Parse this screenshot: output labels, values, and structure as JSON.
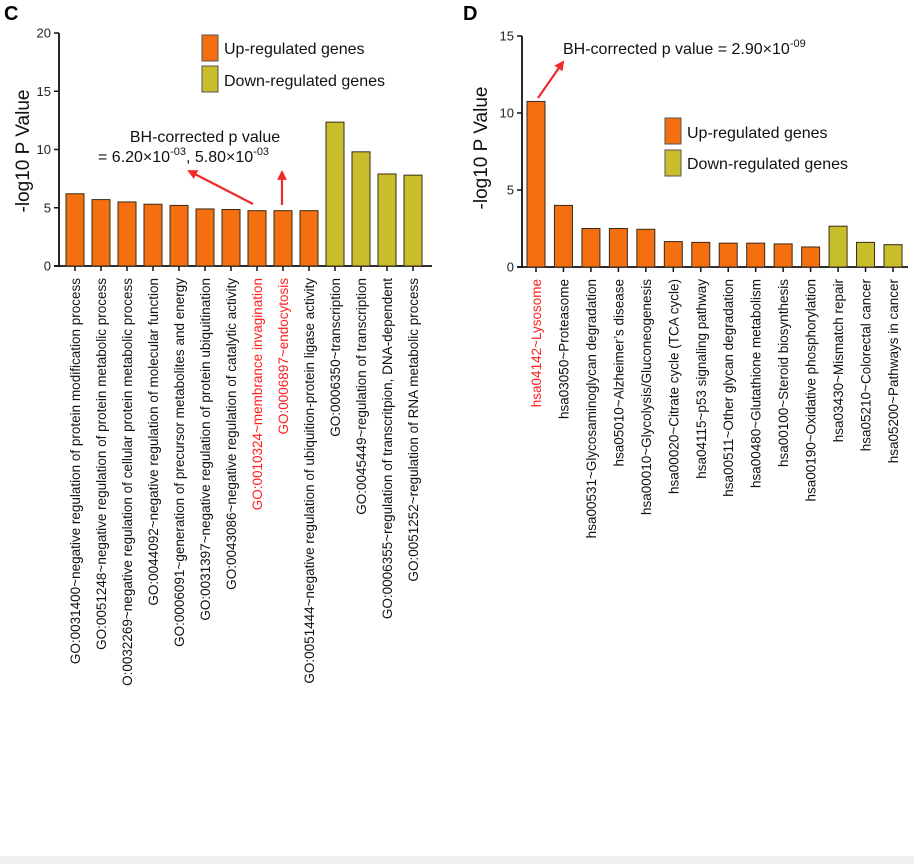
{
  "colors": {
    "up": "#f36f10",
    "down": "#c8be2c",
    "highlight_label": "#ff2020",
    "arrow": "#f02a2a",
    "bar_stroke": "#3a2a1a"
  },
  "chart_data": [
    {
      "panel": "C",
      "type": "bar",
      "title": "",
      "xlabel": "",
      "ylabel": "-log10 P Value",
      "ylim": [
        0,
        20
      ],
      "yticks": [
        0,
        5,
        10,
        15,
        20
      ],
      "grid": false,
      "legend": {
        "placement": "top-right",
        "entries": [
          {
            "label": "Up-regulated genes",
            "group": "up"
          },
          {
            "label": "Down-regulated genes",
            "group": "down"
          }
        ]
      },
      "categories": [
        "GO:0031400~negative regulation of protein modification process",
        "GO:0051248~negative regulation of protein metabolic process",
        "GO:0032269~negative regulation of cellular protein metabolic process",
        "GO:0044092~negative regulation of molecular function",
        "GO:0006091~generation of precursor metabolites and energy",
        "GO:0031397~negative regulation of protein ubiquitination",
        "GO:0043086~negative regulation of catalytic activity",
        "GO:0010324~membrance invagination",
        "GO:0006897~endocytosis",
        "GO:0051444~negative regulation of ubiquition-protein ligase activity",
        "GO:0006350~transcription",
        "GO:0045449~regulation of transcription",
        "GO:0006355~regulation of transcritpion, DNA-dependent",
        "GO:0051252~regulation of RNA metabolic process"
      ],
      "display_labels": [
        "GO:0031400~negative regulation of protein modification process",
        "GO:0051248~negative regulation of protein metabolic process",
        "O:0032269~negative regulation of cellular protein metabolic process",
        "GO:0044092~negative regulation of molecular function",
        "GO:0006091~generation of precursor metabolites and energy",
        "GO:0031397~negative regulation of protein ubiquitination",
        "GO:0043086~negative regulation of catalytic activity",
        "GO:0010324~membrance invagination",
        "GO:0006897~endocytosis",
        "GO:0051444~negative regulation of ubiquition-protein ligase activity",
        "GO:0006350~transcription",
        "GO:0045449~regulation of transcription",
        "GO:0006355~regulation of transcritpion, DNA-dependent",
        "GO:0051252~regulation of RNA metabolic process"
      ],
      "values": [
        6.2,
        5.7,
        5.5,
        5.3,
        5.2,
        4.9,
        4.85,
        4.75,
        4.75,
        4.75,
        12.35,
        9.8,
        7.9,
        7.8
      ],
      "groups": [
        "up",
        "up",
        "up",
        "up",
        "up",
        "up",
        "up",
        "up",
        "up",
        "up",
        "down",
        "down",
        "down",
        "down"
      ],
      "highlighted": [
        7,
        8
      ],
      "annotation": {
        "line1": "BH-corrected p value",
        "line2_prefix": "= 6.20×10",
        "exp1": "-03",
        "mid": ", 5.80×10",
        "exp2": "-03"
      }
    },
    {
      "panel": "D",
      "type": "bar",
      "title": "",
      "xlabel": "",
      "ylabel": "-log10 P Value",
      "ylim": [
        0,
        15
      ],
      "yticks": [
        0,
        5,
        10,
        15
      ],
      "grid": false,
      "legend": {
        "placement": "center-right",
        "entries": [
          {
            "label": "Up-regulated genes",
            "group": "up"
          },
          {
            "label": "Down-regulated genes",
            "group": "down"
          }
        ]
      },
      "categories": [
        "hsa04142~Lysosome",
        "hsa03050~Proteasome",
        "hsa00531~Glycosaminoglycan degradation",
        "hsa05010~Alzheimer's disease",
        "hsa00010~Glycolysis/Gluconeogenesis",
        "hsa00020~Citrate cycle (TCA cycle)",
        "hsa04115~p53 signaling pathway",
        "hsa00511~Other glycan degradation",
        "hsa00480~Glutathione metabolism",
        "hsa00100~Steroid biosynthesis",
        "hsa00190~Oxidative phosphorylation",
        "hsa03430~Mismatch repair",
        "hsa05210~Colorectal cancer",
        "hsa05200~Pathways in cancer"
      ],
      "display_labels": [
        "hsa04142~Lysosome",
        "hsa03050~Proteasome",
        "hsa00531~Glycosaminoglycan degradation",
        "hsa05010~Alzheimer’s disease",
        "hsa00010~Glycolysis/Gluconeogenesis",
        "hsa00020~Citrate cycle (TCA cycle)",
        "hsa04115~p53 signaling pathway",
        "hsa00511~Other glycan degradation",
        "hsa00480~Glutathione metabolism",
        "hsa00100~Steroid biosynthesis",
        "hsa00190~Oxidative phosphorylation",
        "hsa03430~Mismatch repair",
        "hsa05210~Colorectal cancer",
        "hsa05200~Pathways in cancer"
      ],
      "values": [
        10.75,
        4.0,
        2.5,
        2.5,
        2.45,
        1.65,
        1.6,
        1.55,
        1.55,
        1.5,
        1.3,
        2.65,
        1.6,
        1.45
      ],
      "groups": [
        "up",
        "up",
        "up",
        "up",
        "up",
        "up",
        "up",
        "up",
        "up",
        "up",
        "up",
        "down",
        "down",
        "down"
      ],
      "highlighted": [
        0
      ],
      "annotation": {
        "line1_prefix": "BH-corrected p value = 2.90×10",
        "exp1": "-09"
      }
    }
  ]
}
